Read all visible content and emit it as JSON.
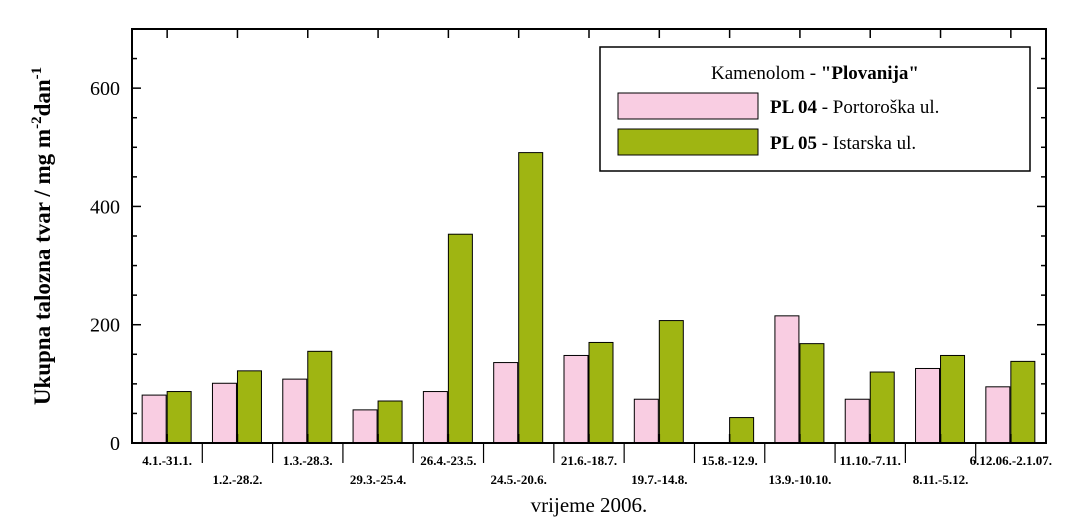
{
  "chart_data": {
    "type": "bar",
    "xlabel": "vrijeme 2006.",
    "ylabel_main": "Ukupna talozna tvar / mg m",
    "ylabel_exp1": "-2",
    "ylabel_mid": "dan",
    "ylabel_exp2": "-1",
    "ylim": [
      0,
      700
    ],
    "yticks": [
      0,
      200,
      400,
      600
    ],
    "categories": [
      "4.1.-31.1.",
      "1.2.-28.2.",
      "1.3.-28.3.",
      "29.3.-25.4.",
      "26.4.-23.5.",
      "24.5.-20.6.",
      "21.6.-18.7.",
      "19.7.-14.8.",
      "15.8.-12.9.",
      "13.9.-10.10.",
      "11.10.-7.11.",
      "8.11.-5.12.",
      "6.12.06.-2.1.07."
    ],
    "series": [
      {
        "name": "PL 04",
        "desc": "Portoroška ul.",
        "color": "#f9cde2",
        "values": [
          81,
          101,
          108,
          56,
          87,
          136,
          148,
          74,
          null,
          215,
          74,
          126,
          95
        ]
      },
      {
        "name": "PL 05",
        "desc": "Istarska ul.",
        "color": "#9fb512",
        "values": [
          87,
          122,
          155,
          71,
          353,
          491,
          170,
          207,
          43,
          168,
          120,
          148,
          138
        ]
      }
    ],
    "legend": {
      "title_prefix": "Kamenolom - ",
      "title_bold": "\"Plovanija\"",
      "placement": "top-right"
    }
  }
}
